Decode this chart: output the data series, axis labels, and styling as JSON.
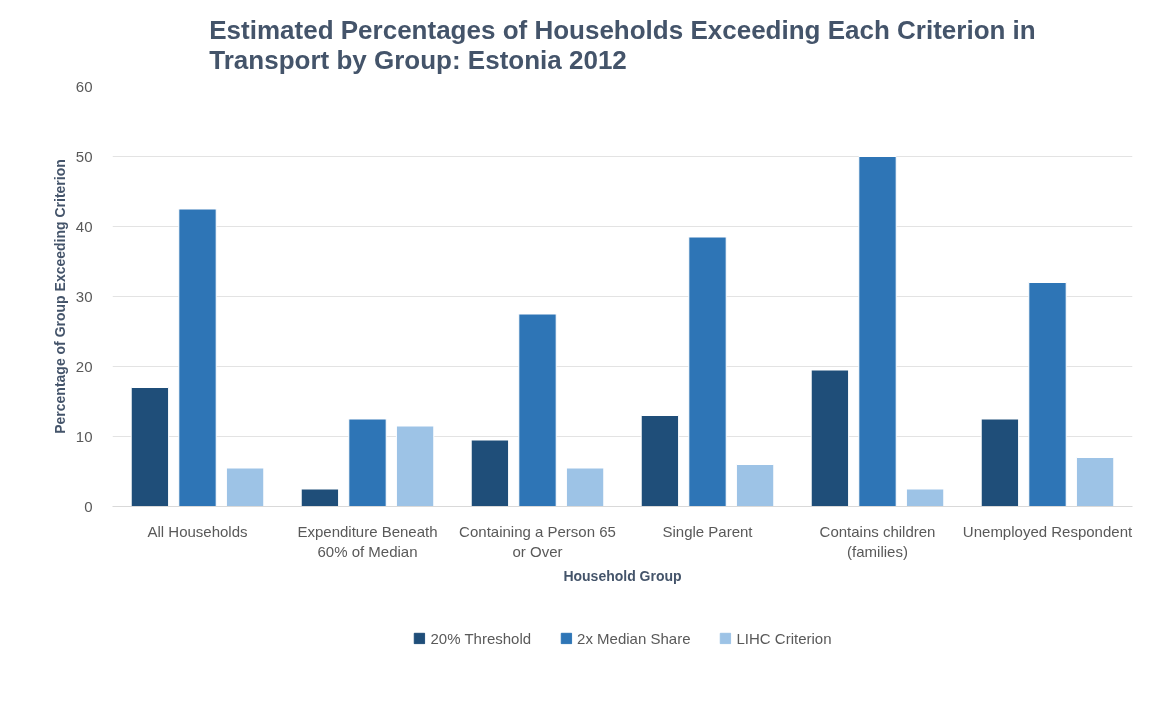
{
  "chart_data": {
    "type": "bar",
    "title": "Estimated Percentages of Households Exceeding Each Criterion in Transport by Group: Estonia 2012",
    "xlabel": "Household Group",
    "ylabel": "Percentage of Group Exceeding Criterion",
    "categories": [
      "All Households",
      "Expenditure Beneath 60% of Median",
      "Containing a Person 65 or Over",
      "Single Parent",
      "Contains children (families)",
      "Unemployed Respondent"
    ],
    "series": [
      {
        "name": "20% Threshold",
        "color": "#1f4e79",
        "values": [
          17,
          2.5,
          9.5,
          13,
          19.5,
          12.5
        ]
      },
      {
        "name": "2x Median Share",
        "color": "#2e75b6",
        "values": [
          42.5,
          12.5,
          27.5,
          38.5,
          50,
          32
        ]
      },
      {
        "name": "LIHC Criterion",
        "color": "#9dc3e6",
        "values": [
          5.5,
          11.5,
          5.5,
          6,
          2.5,
          7
        ]
      }
    ],
    "ylim": [
      0,
      60
    ],
    "yticks": [
      0,
      10,
      20,
      30,
      40,
      50,
      60
    ],
    "grid": "y",
    "legend": "bottom"
  }
}
